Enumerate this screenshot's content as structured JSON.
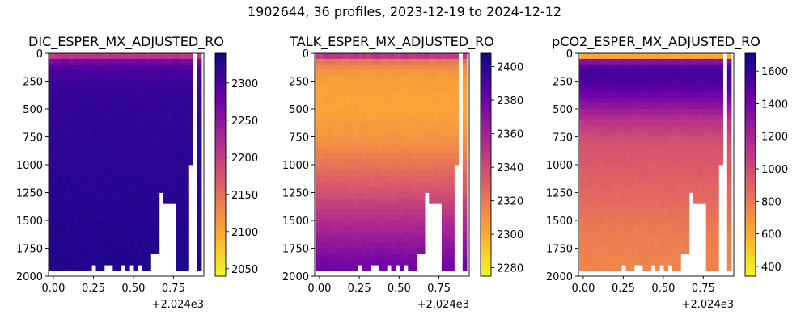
{
  "figure": {
    "suptitle": "1902644, 36 profiles, 2023-12-19 to 2024-12-12"
  },
  "colormap": [
    "#f0f921",
    "#fca636",
    "#e16462",
    "#b12a90",
    "#6a00a8",
    "#0d0887"
  ],
  "chart_data": [
    {
      "type": "heatmap",
      "title": "DIC_ESPER_MX_ADJUSTED_RO",
      "xlabel": "",
      "ylabel": "",
      "x_ticks": [
        "0.00",
        "0.25",
        "0.50",
        "0.75"
      ],
      "x_tick_values": [
        0.0,
        0.25,
        0.5,
        0.75
      ],
      "x_offset_label": "+2.024e3",
      "xlim": [
        -0.03,
        0.94
      ],
      "y_ticks": [
        "0",
        "250",
        "500",
        "750",
        "1000",
        "1250",
        "1500",
        "1750",
        "2000"
      ],
      "y_tick_values": [
        0,
        250,
        500,
        750,
        1000,
        1250,
        1500,
        1750,
        2000
      ],
      "ylim": [
        2000,
        0
      ],
      "y_inverted": true,
      "colorbar_ticks": [
        "2050",
        "2100",
        "2150",
        "2200",
        "2250",
        "2300"
      ],
      "colorbar_tick_values": [
        2050,
        2100,
        2150,
        2200,
        2250,
        2300
      ],
      "vmin": 2040,
      "vmax": 2340,
      "profiles": 36,
      "profile_x_start": -0.025,
      "profile_x_step": 0.02639,
      "max_depth": 1950,
      "missing_profiles": [
        34
      ],
      "profile_bottom_depth": [
        1950,
        1950,
        1950,
        1950,
        1950,
        1950,
        1950,
        1950,
        1950,
        1950,
        1900,
        1950,
        1950,
        1900,
        1900,
        1950,
        1950,
        1900,
        1950,
        1900,
        1950,
        1900,
        1950,
        1950,
        1800,
        1800,
        1250,
        1350,
        1350,
        1350,
        1950,
        1950,
        1950,
        1000,
        1950,
        1950
      ],
      "profile_top_value": [
        2175,
        2185,
        2180,
        2190,
        2185,
        2175,
        2190,
        2180,
        2185,
        2190,
        2180,
        2185,
        2180,
        2175,
        2185,
        2180,
        2190,
        2185,
        2180,
        2175,
        2185,
        2190,
        2185,
        2180,
        2185,
        2180,
        2190,
        2185,
        2180,
        2185,
        2190,
        2180,
        2185,
        2180,
        2185,
        2180
      ],
      "depth_profile": [
        [
          0,
          2175
        ],
        [
          40,
          2215
        ],
        [
          90,
          2290
        ],
        [
          200,
          2305
        ],
        [
          400,
          2315
        ],
        [
          700,
          2318
        ],
        [
          1000,
          2320
        ],
        [
          1500,
          2325
        ],
        [
          2000,
          2328
        ]
      ],
      "notes": "Near-surface DIC ~2150-2250 (orange-pink); below ~100 m ~2300-2330 (dark purple)."
    },
    {
      "type": "heatmap",
      "title": "TALK_ESPER_MX_ADJUSTED_RO",
      "xlabel": "",
      "ylabel": "",
      "x_ticks": [
        "0.00",
        "0.25",
        "0.50",
        "0.75"
      ],
      "x_tick_values": [
        0.0,
        0.25,
        0.5,
        0.75
      ],
      "x_offset_label": "+2.024e3",
      "xlim": [
        -0.03,
        0.94
      ],
      "y_ticks": [
        "0",
        "250",
        "500",
        "750",
        "1000",
        "1250",
        "1500",
        "1750",
        "2000"
      ],
      "y_tick_values": [
        0,
        250,
        500,
        750,
        1000,
        1250,
        1500,
        1750,
        2000
      ],
      "ylim": [
        2000,
        0
      ],
      "y_inverted": true,
      "colorbar_ticks": [
        "2280",
        "2300",
        "2320",
        "2340",
        "2360",
        "2380",
        "2400"
      ],
      "colorbar_tick_values": [
        2280,
        2300,
        2320,
        2340,
        2360,
        2380,
        2400
      ],
      "vmin": 2275,
      "vmax": 2408,
      "profiles": 36,
      "profile_x_start": -0.025,
      "profile_x_step": 0.02639,
      "max_depth": 1950,
      "missing_profiles": [
        34
      ],
      "profile_bottom_depth": [
        1950,
        1950,
        1950,
        1950,
        1950,
        1950,
        1950,
        1950,
        1950,
        1950,
        1900,
        1950,
        1950,
        1900,
        1900,
        1950,
        1950,
        1900,
        1950,
        1900,
        1950,
        1900,
        1950,
        1950,
        1800,
        1800,
        1250,
        1350,
        1350,
        1350,
        1950,
        1950,
        1950,
        1000,
        1950,
        1950
      ],
      "profile_top_value": [
        2370,
        2365,
        2375,
        2372,
        2368,
        2375,
        2370,
        2366,
        2372,
        2375,
        2368,
        2370,
        2365,
        2372,
        2375,
        2370,
        2368,
        2373,
        2370,
        2366,
        2372,
        2375,
        2370,
        2368,
        2372,
        2370,
        2375,
        2368,
        2372,
        2370,
        2366,
        2372,
        2370,
        2368,
        2375,
        2372
      ],
      "depth_profile": [
        [
          0,
          2372
        ],
        [
          30,
          2345
        ],
        [
          80,
          2318
        ],
        [
          200,
          2305
        ],
        [
          500,
          2302
        ],
        [
          800,
          2310
        ],
        [
          1000,
          2322
        ],
        [
          1300,
          2340
        ],
        [
          1600,
          2360
        ],
        [
          2000,
          2385
        ]
      ],
      "notes": "Thin dark-purple surface band; minimum alkalinity (yellow-orange) at 200-800 m; increasing to ~2390 at depth."
    },
    {
      "type": "heatmap",
      "title": "pCO2_ESPER_MX_ADJUSTED_RO",
      "xlabel": "",
      "ylabel": "",
      "x_ticks": [
        "0.00",
        "0.25",
        "0.50",
        "0.75"
      ],
      "x_tick_values": [
        0.0,
        0.25,
        0.5,
        0.75
      ],
      "x_offset_label": "+2.024e3",
      "xlim": [
        -0.03,
        0.94
      ],
      "y_ticks": [
        "0",
        "250",
        "500",
        "750",
        "1000",
        "1250",
        "1500",
        "1750",
        "2000"
      ],
      "y_tick_values": [
        0,
        250,
        500,
        750,
        1000,
        1250,
        1500,
        1750,
        2000
      ],
      "ylim": [
        2000,
        0
      ],
      "y_inverted": true,
      "colorbar_ticks": [
        "400",
        "600",
        "800",
        "1000",
        "1200",
        "1400",
        "1600"
      ],
      "colorbar_tick_values": [
        400,
        600,
        800,
        1000,
        1200,
        1400,
        1600
      ],
      "vmin": 340,
      "vmax": 1710,
      "profiles": 36,
      "profile_x_start": -0.025,
      "profile_x_step": 0.02639,
      "max_depth": 1950,
      "missing_profiles": [
        34
      ],
      "profile_bottom_depth": [
        1950,
        1950,
        1950,
        1950,
        1950,
        1950,
        1950,
        1950,
        1950,
        1950,
        1900,
        1950,
        1950,
        1900,
        1900,
        1950,
        1950,
        1900,
        1950,
        1900,
        1950,
        1900,
        1950,
        1950,
        1800,
        1800,
        1250,
        1350,
        1350,
        1350,
        1950,
        1950,
        1950,
        1000,
        1950,
        1950
      ],
      "profile_top_value": [
        420,
        440,
        410,
        430,
        450,
        420,
        440,
        430,
        410,
        420,
        450,
        430,
        440,
        420,
        410,
        430,
        440,
        420,
        450,
        430,
        420,
        440,
        410,
        430,
        420,
        440,
        430,
        410,
        440,
        420,
        430,
        450,
        420,
        440,
        430,
        420
      ],
      "depth_profile": [
        [
          0,
          430
        ],
        [
          30,
          650
        ],
        [
          80,
          1400
        ],
        [
          150,
          1560
        ],
        [
          300,
          1500
        ],
        [
          450,
          1330
        ],
        [
          600,
          1120
        ],
        [
          800,
          970
        ],
        [
          1000,
          930
        ],
        [
          1300,
          870
        ],
        [
          1600,
          790
        ],
        [
          2000,
          740
        ]
      ],
      "notes": "Low pCO2 (yellow) at surface, max ~1550-1650 (dark purple) at 100-300 m, decreasing to ~750 (orange) at depth."
    }
  ]
}
